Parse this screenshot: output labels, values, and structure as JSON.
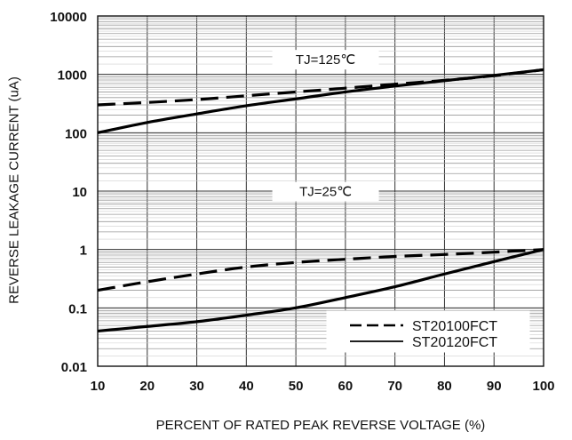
{
  "chart_data": {
    "type": "line",
    "title": "",
    "xlabel": "PERCENT OF RATED PEAK REVERSE VOLTAGE (%)",
    "ylabel": "REVERSE LEAKAGE CURRENT (uA)",
    "x_ticks": [
      "10",
      "20",
      "30",
      "40",
      "50",
      "60",
      "70",
      "80",
      "90",
      "100"
    ],
    "y_ticks": [
      "10000",
      "1000",
      "100",
      "10",
      "1",
      "0.1",
      "0.01"
    ],
    "xlim": [
      10,
      100
    ],
    "ylim": [
      0.01,
      10000
    ],
    "y_scale": "log",
    "grid": true,
    "legend_position": "bottom-right",
    "annotations": [
      "TJ=125℃",
      "TJ=25℃"
    ],
    "legend": [
      {
        "label": "ST20100FCT",
        "style": "dashed"
      },
      {
        "label": "ST20120FCT",
        "style": "solid"
      }
    ],
    "series": [
      {
        "name": "ST20100FCT",
        "condition": "TJ=125℃",
        "style": "dashed",
        "x": [
          10,
          20,
          30,
          40,
          50,
          60,
          70,
          80,
          90,
          100
        ],
        "y": [
          300,
          330,
          370,
          430,
          500,
          580,
          680,
          790,
          950,
          1200
        ]
      },
      {
        "name": "ST20120FCT",
        "condition": "TJ=125℃",
        "style": "solid",
        "x": [
          10,
          20,
          30,
          40,
          50,
          60,
          70,
          80,
          90,
          100
        ],
        "y": [
          100,
          150,
          210,
          290,
          380,
          500,
          630,
          780,
          960,
          1200
        ]
      },
      {
        "name": "ST20100FCT",
        "condition": "TJ=25℃",
        "style": "dashed",
        "x": [
          10,
          20,
          30,
          40,
          50,
          60,
          70,
          80,
          90,
          100
        ],
        "y": [
          0.2,
          0.28,
          0.38,
          0.5,
          0.6,
          0.68,
          0.76,
          0.82,
          0.9,
          1.0
        ]
      },
      {
        "name": "ST20120FCT",
        "condition": "TJ=25℃",
        "style": "solid",
        "x": [
          10,
          20,
          30,
          40,
          50,
          60,
          70,
          80,
          90,
          100
        ],
        "y": [
          0.04,
          0.048,
          0.058,
          0.075,
          0.1,
          0.15,
          0.23,
          0.38,
          0.62,
          1.0
        ]
      }
    ]
  }
}
